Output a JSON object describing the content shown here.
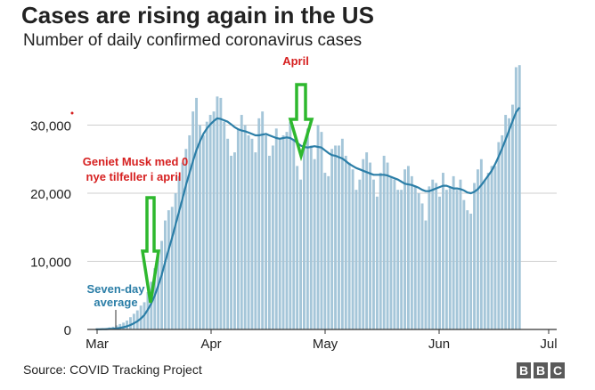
{
  "header": {
    "title": "Cases are rising again in the US",
    "subtitle": "Number of daily confirmed coronavirus cases"
  },
  "footer": {
    "source": "Source: COVID Tracking Project",
    "logo": [
      "B",
      "B",
      "C"
    ]
  },
  "annotations": {
    "april": "April",
    "musk_line1": "Geniet Musk med 0",
    "musk_line2": "nye tilfeller i april",
    "avg_line1": "Seven-day",
    "avg_line2": "average"
  },
  "colors": {
    "bars": "#a5c6d9",
    "line": "#2b7ea7",
    "arrow": "#2eb82e",
    "annotation_red": "#d62020",
    "avg_label": "#2b7ea7"
  },
  "chart_data": {
    "type": "bar",
    "title": "Cases are rising again in the US",
    "subtitle": "Number of daily confirmed coronavirus cases",
    "x_ticks": [
      "Mar",
      "Apr",
      "May",
      "Jun",
      "Jul"
    ],
    "y_ticks": [
      "0",
      "10,000",
      "20,000",
      "30,000"
    ],
    "ylim": [
      0,
      40000
    ],
    "grid": "horizontal",
    "series": [
      {
        "values": [
          50,
          100,
          150,
          200,
          300,
          400,
          600,
          800,
          1000,
          1300,
          1800,
          2300,
          2800,
          3500,
          4000,
          5500,
          7000,
          9000,
          11000,
          13000,
          16000,
          17500,
          18000,
          20000,
          22500,
          24500,
          26500,
          28500,
          32000,
          34000,
          30000,
          28500,
          30500,
          31500,
          32000,
          34200,
          34000,
          30500,
          28000,
          25500,
          26000,
          29500,
          31500,
          30000,
          28500,
          28000,
          26000,
          31000,
          32000,
          28500,
          25500,
          27000,
          29500,
          28000,
          28500,
          29000,
          30500,
          28000,
          24000,
          22000,
          27500,
          29500,
          27000,
          25000,
          30000,
          29000,
          23000,
          22500,
          26500,
          27000,
          27000,
          28000,
          25500,
          24500,
          23500,
          20500,
          22000,
          25000,
          26000,
          24500,
          22000,
          19500,
          23000,
          25500,
          24500,
          22500,
          22000,
          20500,
          20500,
          23500,
          24000,
          22500,
          21000,
          20000,
          18500,
          16000,
          21000,
          22000,
          21500,
          19500,
          23000,
          20500,
          21000,
          22500,
          20500,
          22000,
          19000,
          17500,
          17000,
          21500,
          23500,
          25000,
          22000,
          23000,
          24000,
          24000,
          27500,
          28500,
          31500,
          31000,
          33000,
          38500,
          38800
        ]
      },
      {
        "name": "Seven-day average",
        "values": [
          20,
          25,
          35,
          50,
          80,
          110,
          160,
          230,
          330,
          460,
          650,
          900,
          1200,
          1600,
          2100,
          2900,
          3800,
          5000,
          6400,
          8000,
          9900,
          11700,
          13500,
          15400,
          17300,
          19200,
          21200,
          23000,
          24700,
          26300,
          27600,
          28700,
          29500,
          30100,
          30600,
          31000,
          30900,
          30700,
          30500,
          30100,
          29700,
          29400,
          29200,
          29100,
          28900,
          28700,
          28500,
          28500,
          28600,
          28700,
          28500,
          28300,
          28100,
          28000,
          28100,
          28200,
          28100,
          27800,
          27400,
          27000,
          26800,
          26700,
          26800,
          26900,
          26800,
          26700,
          26300,
          25900,
          25600,
          25500,
          25300,
          25100,
          24700,
          24300,
          24000,
          23700,
          23500,
          23300,
          23100,
          22900,
          22700,
          22700,
          22700,
          22700,
          22600,
          22400,
          22200,
          22000,
          21700,
          21400,
          21300,
          21200,
          21000,
          20800,
          20500,
          20300,
          20300,
          20500,
          20700,
          20900,
          21100,
          21100,
          20900,
          20700,
          20700,
          20600,
          20400,
          20100,
          20000,
          20200,
          20600,
          21200,
          21900,
          22600,
          23300,
          24300,
          25400,
          26600,
          27900,
          29200,
          30600,
          31900,
          32600
        ]
      }
    ]
  }
}
